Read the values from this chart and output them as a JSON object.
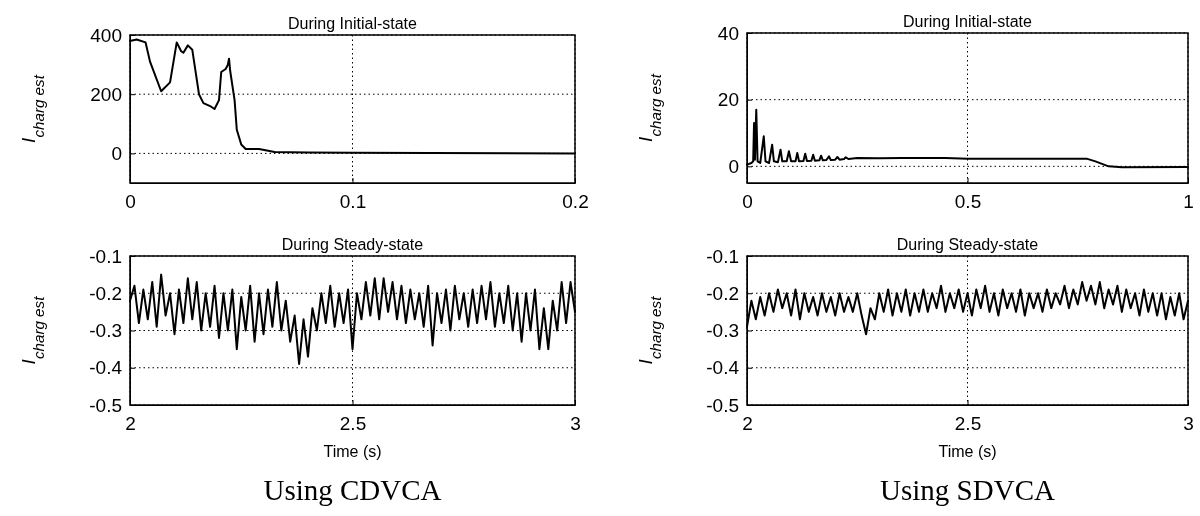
{
  "chart_data": [
    {
      "type": "line",
      "title": "During Initial-state",
      "ylabel": "I$_{charg est}$",
      "xlim": [
        0,
        0.2
      ],
      "xticks": [
        0,
        0.1,
        0.2
      ],
      "ylim": [
        -100,
        400
      ],
      "yticks": [
        0,
        200,
        400
      ],
      "grid": true,
      "line_style": "solid",
      "series": [
        {
          "color": "#000000",
          "x": [
            0,
            0.003,
            0.007,
            0.009,
            0.014,
            0.018,
            0.021,
            0.023,
            0.024,
            0.026,
            0.028,
            0.031,
            0.033,
            0.036,
            0.038,
            0.04,
            0.041,
            0.043,
            0.044,
            0.0445,
            0.045,
            0.047,
            0.048,
            0.05,
            0.052,
            0.058,
            0.065,
            0.08,
            0.1,
            0.2
          ],
          "values": [
            380,
            385,
            375,
            310,
            210,
            240,
            375,
            345,
            340,
            365,
            350,
            200,
            170,
            160,
            150,
            180,
            275,
            285,
            300,
            320,
            280,
            180,
            80,
            30,
            15,
            15,
            5,
            3,
            2,
            0
          ]
        }
      ]
    },
    {
      "type": "line",
      "title": "During Initial-state",
      "ylabel": "I$_{charg est}$",
      "xlim": [
        0,
        1
      ],
      "xticks": [
        0,
        0.5,
        1
      ],
      "ylim": [
        -5,
        40
      ],
      "yticks": [
        0,
        20,
        40
      ],
      "grid": true,
      "line_style": "solid",
      "series": [
        {
          "color": "#000000",
          "x": [
            0,
            0.01,
            0.014,
            0.016,
            0.018,
            0.021,
            0.024,
            0.03,
            0.038,
            0.042,
            0.05,
            0.057,
            0.061,
            0.07,
            0.076,
            0.08,
            0.09,
            0.095,
            0.1,
            0.11,
            0.114,
            0.118,
            0.128,
            0.132,
            0.136,
            0.146,
            0.15,
            0.154,
            0.164,
            0.168,
            0.172,
            0.18,
            0.186,
            0.19,
            0.2,
            0.205,
            0.21,
            0.22,
            0.224,
            0.23,
            0.25,
            0.3,
            0.35,
            0.45,
            0.5,
            0.6,
            0.77,
            0.79,
            0.82,
            0.85,
            1
          ],
          "values": [
            0.5,
            1,
            1.5,
            13,
            2,
            17,
            1.5,
            1,
            9,
            1.5,
            1,
            6.5,
            1.5,
            1.2,
            5,
            1.5,
            1.5,
            4.5,
            1.5,
            1.5,
            4,
            1.5,
            1.6,
            3.8,
            1.6,
            1.7,
            3.5,
            1.7,
            1.8,
            3.2,
            1.8,
            1.9,
            3,
            1.9,
            2,
            2.8,
            2,
            2.2,
            2.7,
            2.2,
            2.5,
            2.4,
            2.5,
            2.5,
            2.3,
            2.3,
            2.3,
            1.5,
            0,
            -0.3,
            -0.2
          ]
        }
      ]
    },
    {
      "type": "line",
      "title": "During Steady-state",
      "xlabel": "Time (s)",
      "ylabel": "I$_{charg est}$",
      "annotations": [
        "Using CDVCA"
      ],
      "xlim": [
        2,
        3
      ],
      "xticks": [
        2,
        2.5,
        3
      ],
      "ylim": [
        -0.5,
        -0.1
      ],
      "yticks": [
        -0.5,
        -0.4,
        -0.3,
        -0.2,
        -0.1
      ],
      "grid": true,
      "line_style": "solid",
      "series": [
        {
          "color": "#000000",
          "values": [
            -0.22,
            -0.18,
            -0.28,
            -0.19,
            -0.27,
            -0.17,
            -0.29,
            -0.15,
            -0.26,
            -0.2,
            -0.31,
            -0.19,
            -0.28,
            -0.16,
            -0.27,
            -0.17,
            -0.3,
            -0.2,
            -0.29,
            -0.18,
            -0.32,
            -0.2,
            -0.3,
            -0.19,
            -0.35,
            -0.21,
            -0.3,
            -0.18,
            -0.33,
            -0.2,
            -0.31,
            -0.19,
            -0.29,
            -0.17,
            -0.3,
            -0.22,
            -0.33,
            -0.26,
            -0.39,
            -0.27,
            -0.37,
            -0.24,
            -0.3,
            -0.2,
            -0.28,
            -0.18,
            -0.29,
            -0.2,
            -0.28,
            -0.19,
            -0.35,
            -0.2,
            -0.27,
            -0.17,
            -0.26,
            -0.16,
            -0.27,
            -0.16,
            -0.25,
            -0.17,
            -0.27,
            -0.18,
            -0.28,
            -0.19,
            -0.27,
            -0.2,
            -0.29,
            -0.18,
            -0.34,
            -0.2,
            -0.28,
            -0.19,
            -0.3,
            -0.18,
            -0.27,
            -0.2,
            -0.29,
            -0.19,
            -0.28,
            -0.18,
            -0.27,
            -0.17,
            -0.29,
            -0.2,
            -0.28,
            -0.18,
            -0.3,
            -0.2,
            -0.33,
            -0.2,
            -0.3,
            -0.19,
            -0.35,
            -0.24,
            -0.35,
            -0.22,
            -0.3,
            -0.17,
            -0.28,
            -0.17,
            -0.25
          ],
          "x": [
            2,
            2.01,
            2.02,
            2.03,
            2.04,
            2.05,
            2.06,
            2.07,
            2.08,
            2.09,
            2.1,
            2.11,
            2.12,
            2.13,
            2.14,
            2.15,
            2.16,
            2.17,
            2.18,
            2.19,
            2.2,
            2.21,
            2.22,
            2.23,
            2.24,
            2.25,
            2.26,
            2.27,
            2.28,
            2.29,
            2.3,
            2.31,
            2.32,
            2.33,
            2.34,
            2.35,
            2.36,
            2.37,
            2.38,
            2.39,
            2.4,
            2.41,
            2.42,
            2.43,
            2.44,
            2.45,
            2.46,
            2.47,
            2.48,
            2.49,
            2.5,
            2.51,
            2.52,
            2.53,
            2.54,
            2.55,
            2.56,
            2.57,
            2.58,
            2.59,
            2.6,
            2.61,
            2.62,
            2.63,
            2.64,
            2.65,
            2.66,
            2.67,
            2.68,
            2.69,
            2.7,
            2.71,
            2.72,
            2.73,
            2.74,
            2.75,
            2.76,
            2.77,
            2.78,
            2.79,
            2.8,
            2.81,
            2.82,
            2.83,
            2.84,
            2.85,
            2.86,
            2.87,
            2.88,
            2.89,
            2.9,
            2.91,
            2.92,
            2.93,
            2.94,
            2.95,
            2.96,
            2.97,
            2.98,
            2.99,
            3
          ]
        }
      ]
    },
    {
      "type": "line",
      "title": "During Steady-state",
      "xlabel": "Time (s)",
      "ylabel": "I$_{charg est}$",
      "annotations": [
        "Using SDVCA"
      ],
      "xlim": [
        2,
        3
      ],
      "xticks": [
        2,
        2.5,
        3
      ],
      "ylim": [
        -0.5,
        -0.1
      ],
      "yticks": [
        -0.5,
        -0.4,
        -0.3,
        -0.2,
        -0.1
      ],
      "grid": true,
      "line_style": "solid",
      "series": [
        {
          "color": "#000000",
          "values": [
            -0.29,
            -0.22,
            -0.27,
            -0.21,
            -0.26,
            -0.2,
            -0.25,
            -0.19,
            -0.24,
            -0.2,
            -0.26,
            -0.19,
            -0.27,
            -0.2,
            -0.25,
            -0.21,
            -0.26,
            -0.2,
            -0.25,
            -0.21,
            -0.26,
            -0.2,
            -0.25,
            -0.21,
            -0.25,
            -0.2,
            -0.26,
            -0.31,
            -0.24,
            -0.27,
            -0.2,
            -0.25,
            -0.19,
            -0.26,
            -0.2,
            -0.25,
            -0.19,
            -0.26,
            -0.2,
            -0.25,
            -0.19,
            -0.25,
            -0.2,
            -0.24,
            -0.18,
            -0.25,
            -0.2,
            -0.24,
            -0.19,
            -0.25,
            -0.2,
            -0.26,
            -0.19,
            -0.24,
            -0.18,
            -0.25,
            -0.2,
            -0.26,
            -0.19,
            -0.24,
            -0.2,
            -0.25,
            -0.19,
            -0.26,
            -0.2,
            -0.24,
            -0.2,
            -0.25,
            -0.19,
            -0.24,
            -0.2,
            -0.23,
            -0.18,
            -0.24,
            -0.19,
            -0.23,
            -0.17,
            -0.22,
            -0.18,
            -0.23,
            -0.17,
            -0.24,
            -0.19,
            -0.23,
            -0.18,
            -0.25,
            -0.19,
            -0.24,
            -0.2,
            -0.26,
            -0.19,
            -0.25,
            -0.2,
            -0.26,
            -0.2,
            -0.27,
            -0.21,
            -0.26,
            -0.2,
            -0.27,
            -0.22
          ],
          "x": [
            2,
            2.01,
            2.02,
            2.03,
            2.04,
            2.05,
            2.06,
            2.07,
            2.08,
            2.09,
            2.1,
            2.11,
            2.12,
            2.13,
            2.14,
            2.15,
            2.16,
            2.17,
            2.18,
            2.19,
            2.2,
            2.21,
            2.22,
            2.23,
            2.24,
            2.25,
            2.26,
            2.27,
            2.28,
            2.29,
            2.3,
            2.31,
            2.32,
            2.33,
            2.34,
            2.35,
            2.36,
            2.37,
            2.38,
            2.39,
            2.4,
            2.41,
            2.42,
            2.43,
            2.44,
            2.45,
            2.46,
            2.47,
            2.48,
            2.49,
            2.5,
            2.51,
            2.52,
            2.53,
            2.54,
            2.55,
            2.56,
            2.57,
            2.58,
            2.59,
            2.6,
            2.61,
            2.62,
            2.63,
            2.64,
            2.65,
            2.66,
            2.67,
            2.68,
            2.69,
            2.7,
            2.71,
            2.72,
            2.73,
            2.74,
            2.75,
            2.76,
            2.77,
            2.78,
            2.79,
            2.8,
            2.81,
            2.82,
            2.83,
            2.84,
            2.85,
            2.86,
            2.87,
            2.88,
            2.89,
            2.9,
            2.91,
            2.92,
            2.93,
            2.94,
            2.95,
            2.96,
            2.97,
            2.98,
            2.99,
            3
          ]
        }
      ]
    }
  ]
}
